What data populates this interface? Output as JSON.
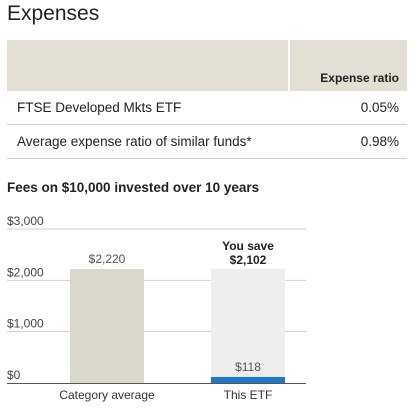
{
  "page_title": "Expenses",
  "expense_table": {
    "headers": [
      "",
      "Expense ratio"
    ],
    "rows": [
      {
        "name": "FTSE Developed Mkts ETF",
        "value": "0.05%"
      },
      {
        "name": "Average expense ratio of similar funds*",
        "value": "0.98%"
      }
    ]
  },
  "fees_heading": "Fees on $10,000 invested over 10 years",
  "chart_data": {
    "type": "bar",
    "title": "Fees on $10,000 invested over 10 years",
    "categories": [
      "Category average",
      "This ETF"
    ],
    "values": [
      2220,
      118
    ],
    "value_labels": [
      "$2,220",
      "$118"
    ],
    "yticks": [
      0,
      1000,
      2000,
      3000
    ],
    "ytick_labels": [
      "$0",
      "$1,000",
      "$2,000",
      "$3,000"
    ],
    "ylim": [
      0,
      3000
    ],
    "savings_label": "You save",
    "savings_value": "$2,102",
    "grid": true,
    "colors": {
      "category_bar": "#dad7cb",
      "etf_bar": "#1f78c1",
      "savings_bar": "#eeeeee",
      "grid": "#cfcfcf",
      "axis": "#555555"
    }
  }
}
